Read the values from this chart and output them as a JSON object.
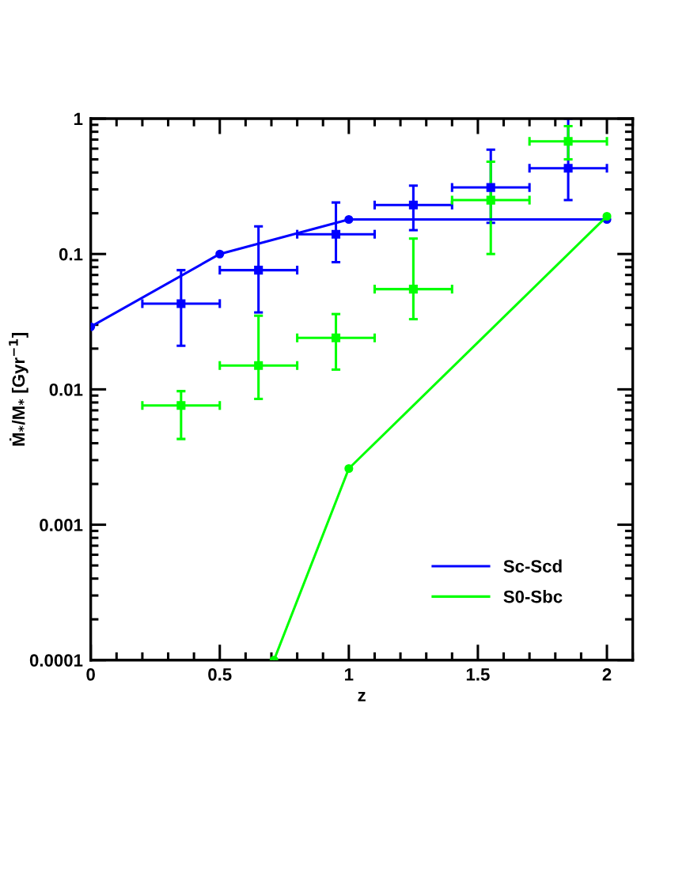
{
  "chart_data": {
    "type": "line",
    "xlabel": "z",
    "ylabel": "Ṁ$_{*}$/M$_{*}$ [Gyr$^{−1}$]",
    "xlim": [
      0,
      2.1
    ],
    "ylim": [
      0.0001,
      1
    ],
    "xticks": [
      0,
      0.5,
      1,
      1.5,
      2
    ],
    "yticks": [
      0.0001,
      0.001,
      0.01,
      0.1,
      1
    ],
    "log": "y",
    "legend": "bottom right",
    "grid": false,
    "line_style": "solid",
    "series": [
      {
        "type": "scatter",
        "color": "#0000ff",
        "marker": "square",
        "x": [
          0.35,
          0.65,
          0.95,
          1.25,
          1.55,
          1.85
        ],
        "values": [
          0.043,
          0.076,
          0.14,
          0.23,
          0.31,
          0.43
        ],
        "errors": [
          [
            0.021,
            0.076
          ],
          [
            0.037,
            0.16
          ],
          [
            0.087,
            0.24
          ],
          [
            0.15,
            0.32
          ],
          [
            0.17,
            0.59
          ],
          [
            0.25,
            1
          ]
        ],
        "xerrors": [
          [
            0.2,
            0.5
          ],
          [
            0.5,
            0.8
          ],
          [
            0.8,
            1.1
          ],
          [
            1.1,
            1.4
          ],
          [
            1.4,
            1.7
          ],
          [
            1.7,
            2.0
          ]
        ]
      },
      {
        "type": "scatter",
        "color": "#00ff00",
        "marker": "square",
        "x": [
          0.35,
          0.65,
          0.95,
          1.25,
          1.55,
          1.85
        ],
        "values": [
          0.0076,
          0.015,
          0.024,
          0.055,
          0.25,
          0.68
        ],
        "errors": [
          [
            0.0043,
            0.0097
          ],
          [
            0.0085,
            0.035
          ],
          [
            0.014,
            0.036
          ],
          [
            0.033,
            0.13
          ],
          [
            0.1,
            0.48
          ],
          [
            0.5,
            0.88
          ]
        ],
        "xerrors": [
          [
            0.2,
            0.5
          ],
          [
            0.5,
            0.8
          ],
          [
            0.8,
            1.1
          ],
          [
            1.1,
            1.4
          ],
          [
            1.4,
            1.7
          ],
          [
            1.7,
            2.0
          ]
        ]
      },
      {
        "name": "Sc-Scd",
        "color": "#0000ff",
        "marker": "circle",
        "x": [
          0,
          0.5,
          1,
          2
        ],
        "values": [
          0.029,
          0.1,
          0.18,
          0.18
        ]
      },
      {
        "name": "S0-Sbc",
        "color": "#00ff00",
        "marker": "circle",
        "x": [
          0.71,
          1,
          2
        ],
        "values": [
          0.0001,
          0.0026,
          0.19
        ]
      }
    ]
  }
}
